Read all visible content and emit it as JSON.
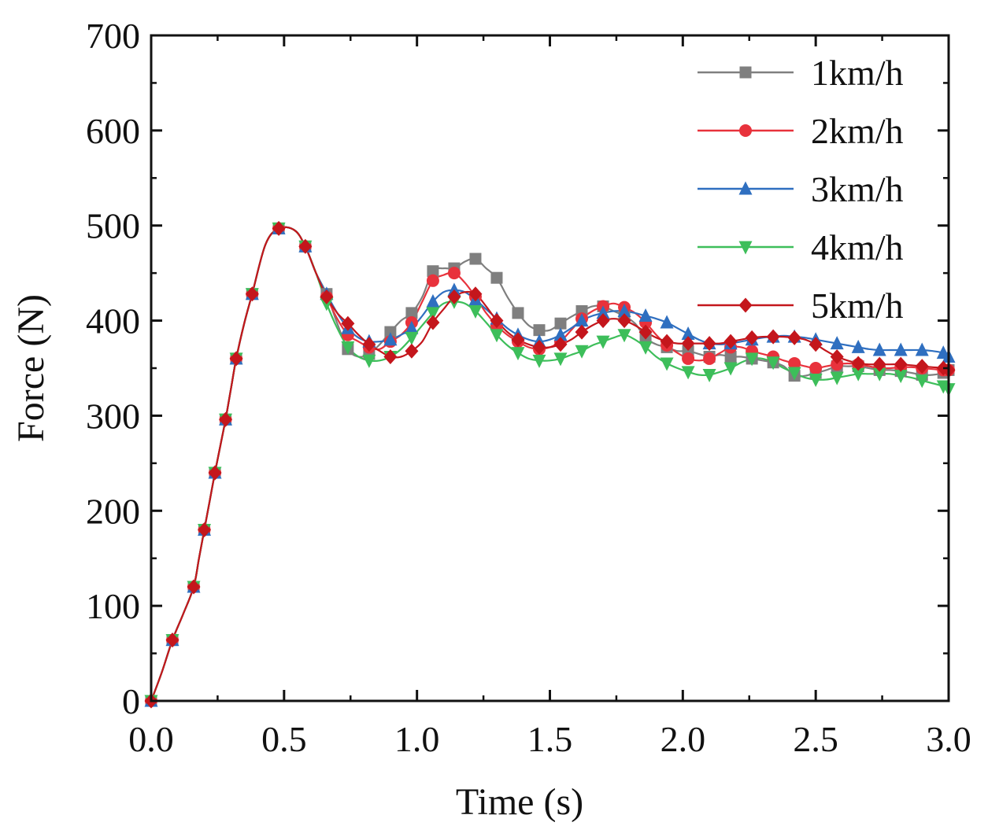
{
  "chart_data": {
    "type": "line",
    "title": "",
    "xlabel": "Time (s)",
    "ylabel": "Force (N)",
    "xlim": [
      0,
      3.0
    ],
    "ylim": [
      0,
      700
    ],
    "xticks": [
      "0.0",
      "0.5",
      "1.0",
      "1.5",
      "2.0",
      "2.5",
      "3.0"
    ],
    "yticks": [
      "0",
      "100",
      "200",
      "300",
      "400",
      "500",
      "600",
      "700"
    ],
    "grid": false,
    "legend_position": "top-right",
    "series": [
      {
        "name": "1km/h",
        "color": "#7f7f7f",
        "marker": "square",
        "x": [
          0.0,
          0.04,
          0.08,
          0.12,
          0.16,
          0.18,
          0.2,
          0.22,
          0.24,
          0.26,
          0.28,
          0.3,
          0.32,
          0.35,
          0.38,
          0.43,
          0.48,
          0.54,
          0.58,
          0.62,
          0.66,
          0.7,
          0.74,
          0.78,
          0.82,
          0.86,
          0.9,
          0.94,
          0.98,
          1.02,
          1.06,
          1.1,
          1.14,
          1.18,
          1.22,
          1.26,
          1.3,
          1.34,
          1.38,
          1.42,
          1.46,
          1.5,
          1.54,
          1.58,
          1.62,
          1.66,
          1.7,
          1.74,
          1.78,
          1.82,
          1.86,
          1.9,
          1.94,
          1.98,
          2.02,
          2.06,
          2.1,
          2.14,
          2.18,
          2.22,
          2.26,
          2.3,
          2.34,
          2.38,
          2.42,
          2.46,
          2.5,
          2.54,
          2.58,
          2.62,
          2.66,
          2.7,
          2.74,
          2.78,
          2.82,
          2.86,
          2.9,
          2.94,
          2.98,
          3.0
        ],
        "y": [
          0,
          30,
          64,
          91,
          120,
          150,
          180,
          210,
          240,
          268,
          296,
          328,
          360,
          397,
          428,
          480,
          497,
          495,
          478,
          450,
          428,
          397,
          370,
          362,
          365,
          375,
          388,
          400,
          408,
          425,
          452,
          455,
          455,
          462,
          465,
          455,
          445,
          425,
          408,
          395,
          390,
          390,
          397,
          404,
          410,
          415,
          415,
          410,
          405,
          397,
          382,
          375,
          372,
          368,
          368,
          365,
          362,
          364,
          362,
          362,
          360,
          358,
          356,
          352,
          342,
          342,
          345,
          348,
          352,
          352,
          352,
          350,
          348,
          348,
          347,
          345,
          343,
          343,
          345,
          348
        ]
      },
      {
        "name": "2km/h",
        "color": "#e8323c",
        "marker": "circle",
        "x": [
          0.0,
          0.04,
          0.08,
          0.12,
          0.16,
          0.18,
          0.2,
          0.22,
          0.24,
          0.26,
          0.28,
          0.3,
          0.32,
          0.35,
          0.38,
          0.43,
          0.48,
          0.54,
          0.58,
          0.62,
          0.66,
          0.7,
          0.74,
          0.78,
          0.82,
          0.86,
          0.9,
          0.94,
          0.98,
          1.02,
          1.06,
          1.1,
          1.14,
          1.18,
          1.22,
          1.26,
          1.3,
          1.34,
          1.38,
          1.42,
          1.46,
          1.5,
          1.54,
          1.58,
          1.62,
          1.66,
          1.7,
          1.74,
          1.78,
          1.82,
          1.86,
          1.9,
          1.94,
          1.98,
          2.02,
          2.06,
          2.1,
          2.14,
          2.18,
          2.22,
          2.26,
          2.3,
          2.34,
          2.38,
          2.42,
          2.46,
          2.5,
          2.54,
          2.58,
          2.62,
          2.66,
          2.7,
          2.74,
          2.78,
          2.82,
          2.86,
          2.9,
          2.94,
          2.98,
          3.0
        ],
        "y": [
          0,
          30,
          64,
          91,
          120,
          150,
          180,
          210,
          240,
          268,
          296,
          328,
          360,
          397,
          428,
          480,
          497,
          495,
          478,
          450,
          425,
          402,
          385,
          378,
          372,
          370,
          378,
          385,
          398,
          420,
          442,
          448,
          450,
          440,
          425,
          408,
          395,
          385,
          378,
          372,
          370,
          372,
          378,
          390,
          402,
          410,
          415,
          418,
          414,
          408,
          398,
          385,
          374,
          366,
          360,
          358,
          360,
          366,
          372,
          372,
          368,
          365,
          362,
          358,
          355,
          352,
          350,
          352,
          354,
          355,
          354,
          352,
          350,
          350,
          351,
          351,
          350,
          349,
          348,
          348
        ]
      },
      {
        "name": "3km/h",
        "color": "#2f6fc0",
        "marker": "triangle-up",
        "x": [
          0.0,
          0.04,
          0.08,
          0.12,
          0.16,
          0.18,
          0.2,
          0.22,
          0.24,
          0.26,
          0.28,
          0.3,
          0.32,
          0.35,
          0.38,
          0.43,
          0.48,
          0.54,
          0.58,
          0.62,
          0.66,
          0.7,
          0.74,
          0.78,
          0.82,
          0.86,
          0.9,
          0.94,
          0.98,
          1.02,
          1.06,
          1.1,
          1.14,
          1.18,
          1.22,
          1.26,
          1.3,
          1.34,
          1.38,
          1.42,
          1.46,
          1.5,
          1.54,
          1.58,
          1.62,
          1.66,
          1.7,
          1.74,
          1.78,
          1.82,
          1.86,
          1.9,
          1.94,
          1.98,
          2.02,
          2.06,
          2.1,
          2.14,
          2.18,
          2.22,
          2.26,
          2.3,
          2.34,
          2.38,
          2.42,
          2.46,
          2.5,
          2.54,
          2.58,
          2.62,
          2.66,
          2.7,
          2.74,
          2.78,
          2.82,
          2.86,
          2.9,
          2.94,
          2.98,
          3.0
        ],
        "y": [
          0,
          30,
          64,
          91,
          120,
          150,
          180,
          210,
          240,
          268,
          296,
          328,
          360,
          397,
          428,
          480,
          497,
          495,
          478,
          450,
          428,
          408,
          392,
          382,
          378,
          378,
          380,
          385,
          392,
          405,
          420,
          430,
          432,
          430,
          422,
          412,
          402,
          392,
          385,
          380,
          378,
          380,
          385,
          392,
          400,
          405,
          408,
          410,
          410,
          408,
          405,
          402,
          398,
          392,
          386,
          380,
          376,
          375,
          376,
          378,
          380,
          382,
          383,
          384,
          383,
          382,
          380,
          378,
          376,
          374,
          372,
          370,
          369,
          369,
          369,
          369,
          369,
          368,
          366,
          362
        ]
      },
      {
        "name": "4km/h",
        "color": "#3dbe5a",
        "marker": "triangle-down",
        "x": [
          0.0,
          0.04,
          0.08,
          0.12,
          0.16,
          0.18,
          0.2,
          0.22,
          0.24,
          0.26,
          0.28,
          0.3,
          0.32,
          0.35,
          0.38,
          0.43,
          0.48,
          0.54,
          0.58,
          0.62,
          0.66,
          0.7,
          0.74,
          0.78,
          0.82,
          0.86,
          0.9,
          0.94,
          0.98,
          1.02,
          1.06,
          1.1,
          1.14,
          1.18,
          1.22,
          1.26,
          1.3,
          1.34,
          1.38,
          1.42,
          1.46,
          1.5,
          1.54,
          1.58,
          1.62,
          1.66,
          1.7,
          1.74,
          1.78,
          1.82,
          1.86,
          1.9,
          1.94,
          1.98,
          2.02,
          2.06,
          2.1,
          2.14,
          2.18,
          2.22,
          2.26,
          2.3,
          2.34,
          2.38,
          2.42,
          2.46,
          2.5,
          2.54,
          2.58,
          2.62,
          2.66,
          2.7,
          2.74,
          2.78,
          2.82,
          2.86,
          2.9,
          2.94,
          2.98,
          3.0
        ],
        "y": [
          0,
          30,
          64,
          91,
          120,
          150,
          180,
          210,
          240,
          268,
          296,
          328,
          360,
          397,
          428,
          480,
          497,
          495,
          478,
          450,
          418,
          392,
          372,
          362,
          358,
          358,
          362,
          370,
          382,
          395,
          408,
          418,
          420,
          418,
          410,
          398,
          385,
          374,
          366,
          360,
          358,
          358,
          360,
          364,
          368,
          374,
          378,
          382,
          385,
          380,
          372,
          362,
          355,
          350,
          346,
          343,
          343,
          346,
          350,
          356,
          360,
          360,
          356,
          350,
          345,
          340,
          338,
          338,
          340,
          342,
          344,
          344,
          344,
          344,
          342,
          340,
          337,
          334,
          331,
          328
        ]
      },
      {
        "name": "5km/h",
        "color": "#c4161c",
        "marker": "diamond",
        "x": [
          0.0,
          0.04,
          0.08,
          0.12,
          0.16,
          0.18,
          0.2,
          0.22,
          0.24,
          0.26,
          0.28,
          0.3,
          0.32,
          0.35,
          0.38,
          0.43,
          0.48,
          0.54,
          0.58,
          0.62,
          0.66,
          0.7,
          0.74,
          0.78,
          0.82,
          0.86,
          0.9,
          0.94,
          0.98,
          1.02,
          1.06,
          1.1,
          1.14,
          1.18,
          1.22,
          1.26,
          1.3,
          1.34,
          1.38,
          1.42,
          1.46,
          1.5,
          1.54,
          1.58,
          1.62,
          1.66,
          1.7,
          1.74,
          1.78,
          1.82,
          1.86,
          1.9,
          1.94,
          1.98,
          2.02,
          2.06,
          2.1,
          2.14,
          2.18,
          2.22,
          2.26,
          2.3,
          2.34,
          2.38,
          2.42,
          2.46,
          2.5,
          2.54,
          2.58,
          2.62,
          2.66,
          2.7,
          2.74,
          2.78,
          2.82,
          2.86,
          2.9,
          2.94,
          2.98,
          3.0
        ],
        "y": [
          0,
          30,
          64,
          91,
          120,
          150,
          180,
          210,
          240,
          268,
          296,
          328,
          360,
          397,
          428,
          480,
          497,
          495,
          478,
          450,
          425,
          408,
          397,
          385,
          375,
          368,
          362,
          362,
          368,
          378,
          398,
          412,
          425,
          430,
          428,
          415,
          400,
          388,
          380,
          375,
          372,
          372,
          375,
          380,
          388,
          395,
          400,
          402,
          400,
          395,
          388,
          382,
          378,
          376,
          376,
          376,
          376,
          376,
          378,
          380,
          382,
          383,
          383,
          383,
          382,
          380,
          375,
          368,
          362,
          358,
          355,
          354,
          354,
          354,
          354,
          353,
          352,
          351,
          350,
          348
        ]
      }
    ]
  }
}
